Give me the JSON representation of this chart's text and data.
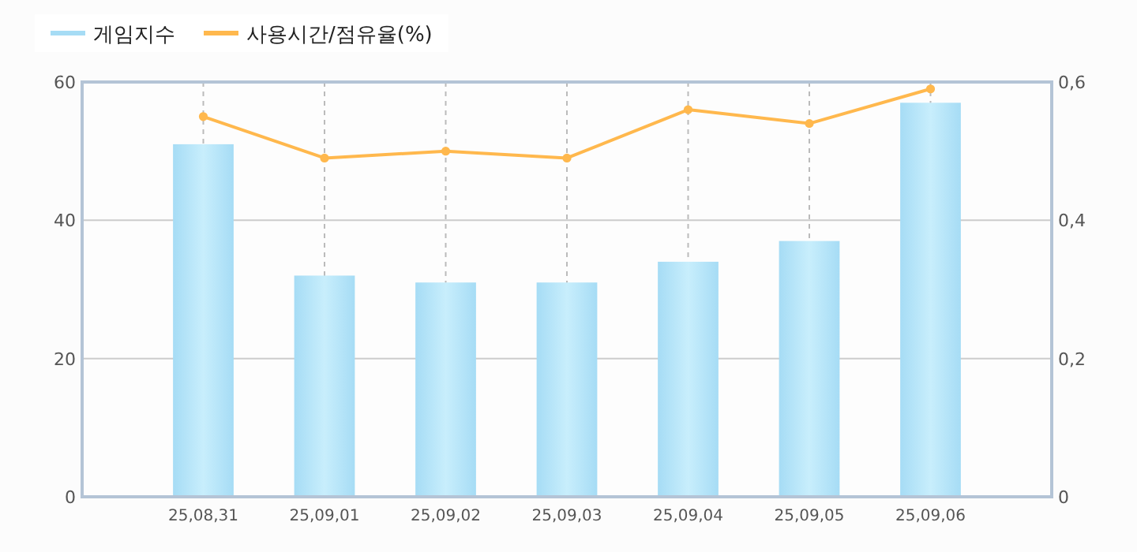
{
  "chart_data": {
    "type": "bar",
    "categories": [
      "25,08,31",
      "25,09,01",
      "25,09,02",
      "25,09,03",
      "25,09,04",
      "25,09,05",
      "25,09,06"
    ],
    "series": [
      {
        "name": "게임지수",
        "color": "#a6dcf5",
        "values": [
          51,
          32,
          31,
          31,
          34,
          37,
          57
        ]
      },
      {
        "name": "사용시간/점유율(%)",
        "type": "line",
        "axis": "y2",
        "color": "#ffb84d",
        "values": [
          0.55,
          0.49,
          0.5,
          0.49,
          0.56,
          0.54,
          0.59
        ]
      }
    ],
    "ylim": [
      0,
      60
    ],
    "yticks": [
      0,
      20,
      40,
      60
    ],
    "y2lim": [
      0,
      0.6
    ],
    "y2ticks": [
      0,
      {
        "value": 0.2,
        "label": "0,2"
      },
      {
        "value": 0.4,
        "label": "0,4"
      },
      {
        "value": 0.6,
        "label": "0,6"
      }
    ],
    "grid": true,
    "marker": "circle",
    "legend": "top left"
  }
}
